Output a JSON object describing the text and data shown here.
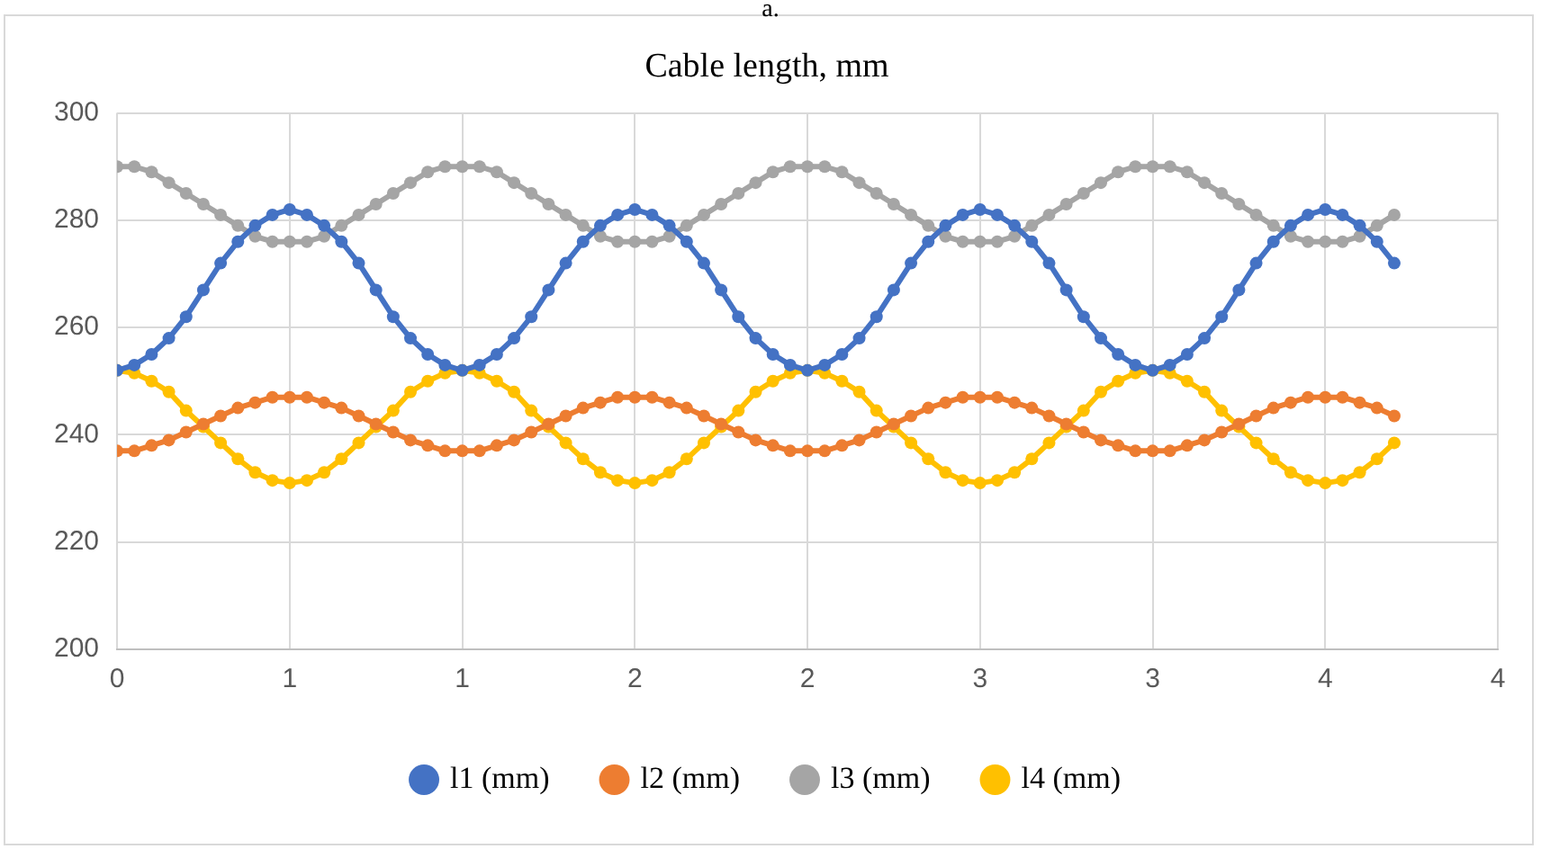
{
  "chart_data": {
    "type": "line",
    "title": "Cable length, mm",
    "annotations": [
      "a."
    ],
    "x": [
      0,
      0.05,
      0.1,
      0.15,
      0.2,
      0.25,
      0.3,
      0.35,
      0.4,
      0.45,
      0.5,
      0.55,
      0.6,
      0.65,
      0.7,
      0.75,
      0.8,
      0.85,
      0.9,
      0.95,
      1,
      1.05,
      1.1,
      1.15,
      1.2,
      1.25,
      1.3,
      1.35,
      1.4,
      1.45,
      1.5,
      1.55,
      1.6,
      1.65,
      1.7,
      1.75,
      1.8,
      1.85,
      1.9,
      1.95,
      2,
      2.05,
      2.1,
      2.15,
      2.2,
      2.25,
      2.3,
      2.35,
      2.4,
      2.45,
      2.5,
      2.55,
      2.6,
      2.65,
      2.7,
      2.75,
      2.8,
      2.85,
      2.9,
      2.95,
      3,
      3.05,
      3.1,
      3.15,
      3.2,
      3.25,
      3.3,
      3.35,
      3.4,
      3.45,
      3.5,
      3.55,
      3.6,
      3.65,
      3.7
    ],
    "series": [
      {
        "name": "l1 (mm)",
        "color": "#4472c4",
        "values": [
          252,
          253,
          255,
          258,
          262,
          267,
          272,
          276,
          279,
          281,
          282,
          281,
          279,
          276,
          272,
          267,
          262,
          258,
          255,
          253,
          252,
          253,
          255,
          258,
          262,
          267,
          272,
          276,
          279,
          281,
          282,
          281,
          279,
          276,
          272,
          267,
          262,
          258,
          255,
          253,
          252,
          253,
          255,
          258,
          262,
          267,
          272,
          276,
          279,
          281,
          282,
          281,
          279,
          276,
          272,
          267,
          262,
          258,
          255,
          253,
          252,
          253,
          255,
          258,
          262,
          267,
          272,
          276,
          279,
          281,
          282,
          281,
          279,
          276,
          272
        ]
      },
      {
        "name": "l2 (mm)",
        "color": "#ed7d31",
        "values": [
          237,
          237,
          238,
          239,
          240.5,
          242,
          243.5,
          245,
          246,
          247,
          247,
          247,
          246,
          245,
          243.5,
          242,
          240.5,
          239,
          238,
          237,
          237,
          237,
          238,
          239,
          240.5,
          242,
          243.5,
          245,
          246,
          247,
          247,
          247,
          246,
          245,
          243.5,
          242,
          240.5,
          239,
          238,
          237,
          237,
          237,
          238,
          239,
          240.5,
          242,
          243.5,
          245,
          246,
          247,
          247,
          247,
          246,
          245,
          243.5,
          242,
          240.5,
          239,
          238,
          237,
          237,
          237,
          238,
          239,
          240.5,
          242,
          243.5,
          245,
          246,
          247,
          247,
          247,
          246,
          245,
          243.5
        ]
      },
      {
        "name": "l3 (mm)",
        "color": "#a5a5a5",
        "values": [
          290,
          290,
          289,
          287,
          285,
          283,
          281,
          279,
          277,
          276,
          276,
          276,
          277,
          279,
          281,
          283,
          285,
          287,
          289,
          290,
          290,
          290,
          289,
          287,
          285,
          283,
          281,
          279,
          277,
          276,
          276,
          276,
          277,
          279,
          281,
          283,
          285,
          287,
          289,
          290,
          290,
          290,
          289,
          287,
          285,
          283,
          281,
          279,
          277,
          276,
          276,
          276,
          277,
          279,
          281,
          283,
          285,
          287,
          289,
          290,
          290,
          290,
          289,
          287,
          285,
          283,
          281,
          279,
          277,
          276,
          276,
          276,
          277,
          279,
          281
        ]
      },
      {
        "name": "l4 (mm)",
        "color": "#ffc000",
        "values": [
          252,
          251.5,
          250,
          248,
          244.5,
          241.5,
          238.5,
          235.5,
          233,
          231.5,
          231,
          231.5,
          233,
          235.5,
          238.5,
          241.5,
          244.5,
          248,
          250,
          251.5,
          252,
          251.5,
          250,
          248,
          244.5,
          241.5,
          238.5,
          235.5,
          233,
          231.5,
          231,
          231.5,
          233,
          235.5,
          238.5,
          241.5,
          244.5,
          248,
          250,
          251.5,
          252,
          251.5,
          250,
          248,
          244.5,
          241.5,
          238.5,
          235.5,
          233,
          231.5,
          231,
          231.5,
          233,
          235.5,
          238.5,
          241.5,
          244.5,
          248,
          250,
          251.5,
          252,
          251.5,
          250,
          248,
          244.5,
          241.5,
          238.5,
          235.5,
          233,
          231.5,
          231,
          231.5,
          233,
          235.5,
          238.5
        ]
      }
    ],
    "xlim": [
      0,
      4
    ],
    "xticks": [
      0,
      {
        "value": 0.5,
        "label": "1"
      },
      1,
      {
        "value": 1.5,
        "label": "2"
      },
      2,
      {
        "value": 2.5,
        "label": "3"
      },
      3,
      {
        "value": 3.5,
        "label": "4"
      },
      4
    ],
    "ylim": [
      200,
      300
    ],
    "yticks": [
      200,
      220,
      240,
      260,
      280,
      300
    ],
    "grid": true,
    "legend": "bottom",
    "marker": "circle",
    "line_style": "solid"
  }
}
